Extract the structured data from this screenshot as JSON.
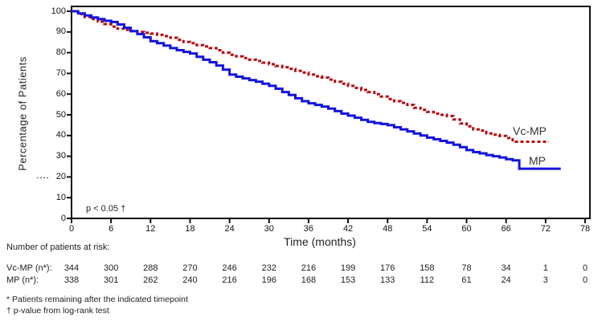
{
  "chart_data": {
    "type": "line",
    "subtype": "kaplan-meier-step",
    "title": "",
    "xlabel": "Time (months)",
    "ylabel": "Percentage of Patients",
    "xlim": [
      0,
      78
    ],
    "ylim": [
      0,
      100
    ],
    "x_ticks": [
      0,
      6,
      12,
      18,
      24,
      30,
      36,
      42,
      48,
      54,
      60,
      66,
      72,
      78
    ],
    "y_ticks": [
      0,
      10,
      20,
      30,
      40,
      50,
      60,
      70,
      80,
      90,
      100
    ],
    "grid": false,
    "annotation": "p < 0.05 †",
    "legend_position": "end-of-curve",
    "axis_color": "#111111",
    "series": [
      {
        "name": "Vc-MP",
        "color": "#b30d12",
        "style": "dashed",
        "step": true,
        "points": [
          [
            0,
            100
          ],
          [
            1,
            98.6
          ],
          [
            2,
            97.2
          ],
          [
            3,
            96.2
          ],
          [
            4,
            95
          ],
          [
            5,
            93.8
          ],
          [
            6,
            92.6
          ],
          [
            7,
            91.6
          ],
          [
            8,
            91
          ],
          [
            9,
            90.4
          ],
          [
            10,
            90
          ],
          [
            11,
            89.6
          ],
          [
            12,
            89.2
          ],
          [
            13,
            88.6
          ],
          [
            14,
            88
          ],
          [
            15,
            87.2
          ],
          [
            16,
            86.2
          ],
          [
            17,
            85.2
          ],
          [
            18,
            84.6
          ],
          [
            19,
            83.6
          ],
          [
            20,
            83
          ],
          [
            21,
            82.2
          ],
          [
            22,
            81.2
          ],
          [
            23,
            80
          ],
          [
            24,
            79
          ],
          [
            25,
            78.2
          ],
          [
            26,
            77.4
          ],
          [
            27,
            76.6
          ],
          [
            28,
            76
          ],
          [
            29,
            75.2
          ],
          [
            30,
            74.4
          ],
          [
            31,
            73.6
          ],
          [
            32,
            73
          ],
          [
            33,
            72.2
          ],
          [
            34,
            71.2
          ],
          [
            35,
            70.4
          ],
          [
            36,
            69.4
          ],
          [
            37,
            68.6
          ],
          [
            38,
            68
          ],
          [
            39,
            67
          ],
          [
            40,
            66
          ],
          [
            41,
            65
          ],
          [
            42,
            64
          ],
          [
            43,
            63
          ],
          [
            44,
            62
          ],
          [
            45,
            61
          ],
          [
            46,
            60
          ],
          [
            47,
            58.8
          ],
          [
            48,
            57.6
          ],
          [
            49,
            56.6
          ],
          [
            50,
            55.8
          ],
          [
            51,
            54.8
          ],
          [
            52,
            53.4
          ],
          [
            53,
            52.4
          ],
          [
            54,
            51.4
          ],
          [
            55,
            50.6
          ],
          [
            56,
            50
          ],
          [
            57,
            49.4
          ],
          [
            58,
            47.8
          ],
          [
            59,
            45.8
          ],
          [
            60,
            44.4
          ],
          [
            61,
            43
          ],
          [
            62,
            42.4
          ],
          [
            63,
            41
          ],
          [
            64,
            40.4
          ],
          [
            65,
            39.8
          ],
          [
            66,
            38.8
          ],
          [
            67,
            37
          ],
          [
            72.5,
            37
          ]
        ]
      },
      {
        "name": "MP",
        "color": "#1414dc",
        "style": "solid",
        "step": true,
        "points": [
          [
            0,
            100
          ],
          [
            1,
            99
          ],
          [
            2,
            98
          ],
          [
            3,
            97
          ],
          [
            4,
            96.2
          ],
          [
            5,
            95.4
          ],
          [
            6,
            94.8
          ],
          [
            7,
            93.6
          ],
          [
            8,
            92
          ],
          [
            9,
            90.4
          ],
          [
            10,
            89
          ],
          [
            11,
            87.4
          ],
          [
            12,
            85.6
          ],
          [
            13,
            84.6
          ],
          [
            14,
            83.4
          ],
          [
            15,
            82.2
          ],
          [
            16,
            81.2
          ],
          [
            17,
            80.4
          ],
          [
            18,
            79.6
          ],
          [
            19,
            78
          ],
          [
            20,
            76.6
          ],
          [
            21,
            75.4
          ],
          [
            22,
            73.8
          ],
          [
            23,
            71.8
          ],
          [
            24,
            69.4
          ],
          [
            25,
            68.4
          ],
          [
            26,
            67.6
          ],
          [
            27,
            66.8
          ],
          [
            28,
            66
          ],
          [
            29,
            65
          ],
          [
            30,
            64
          ],
          [
            31,
            62.6
          ],
          [
            32,
            61
          ],
          [
            33,
            59.6
          ],
          [
            34,
            58
          ],
          [
            35,
            56.6
          ],
          [
            36,
            55.6
          ],
          [
            37,
            54.8
          ],
          [
            38,
            54
          ],
          [
            39,
            53
          ],
          [
            40,
            51.8
          ],
          [
            41,
            50.6
          ],
          [
            42,
            49.6
          ],
          [
            43,
            48.6
          ],
          [
            44,
            47.6
          ],
          [
            45,
            46.6
          ],
          [
            46,
            46
          ],
          [
            47,
            45.6
          ],
          [
            48,
            45
          ],
          [
            49,
            44
          ],
          [
            50,
            43
          ],
          [
            51,
            42
          ],
          [
            52,
            41
          ],
          [
            53,
            40
          ],
          [
            54,
            39
          ],
          [
            55,
            38.2
          ],
          [
            56,
            37.4
          ],
          [
            57,
            36.6
          ],
          [
            58,
            35.6
          ],
          [
            59,
            34.4
          ],
          [
            60,
            33
          ],
          [
            61,
            32
          ],
          [
            62,
            31.4
          ],
          [
            63,
            30.6
          ],
          [
            64,
            30
          ],
          [
            65,
            29.4
          ],
          [
            66,
            28.6
          ],
          [
            67,
            28
          ],
          [
            68,
            24
          ],
          [
            74.3,
            24
          ]
        ]
      }
    ]
  },
  "risk_table": {
    "header": "Number of patients at risk:",
    "columns": [
      0,
      6,
      12,
      18,
      24,
      30,
      36,
      42,
      48,
      54,
      60,
      66,
      72,
      78
    ],
    "rows": [
      {
        "label": "Vc-MP (n*):",
        "values": [
          344,
          300,
          288,
          270,
          246,
          232,
          216,
          199,
          176,
          158,
          78,
          34,
          1,
          0
        ]
      },
      {
        "label": "MP (n*):",
        "values": [
          338,
          301,
          262,
          240,
          216,
          196,
          168,
          153,
          133,
          112,
          61,
          24,
          3,
          0
        ]
      }
    ]
  },
  "footnotes": [
    "* Patients remaining after the indicated timepoint",
    "† p-value from log-rank test"
  ]
}
